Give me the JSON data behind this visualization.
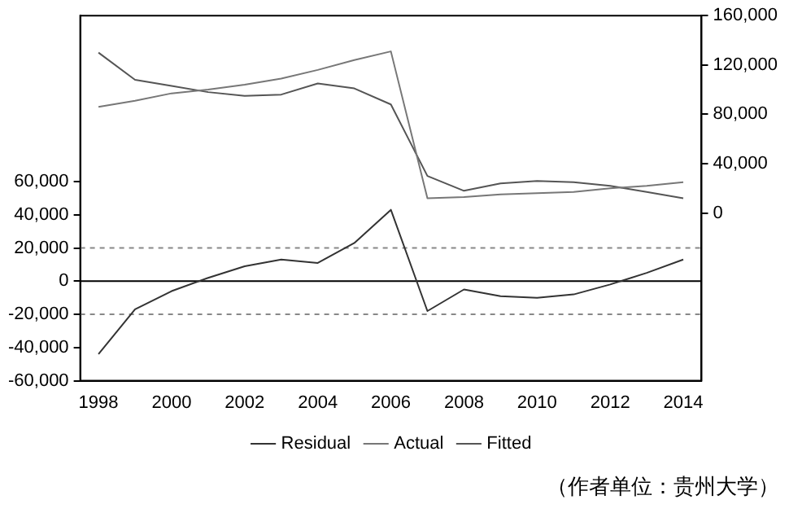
{
  "chart_data": {
    "type": "line",
    "categories": [
      "1998",
      null,
      "2000",
      null,
      "2002",
      null,
      "2004",
      null,
      "2006",
      null,
      "2008",
      null,
      "2010",
      null,
      "2012",
      null,
      "2014"
    ],
    "series": [
      {
        "name": "Residual",
        "color": "#333333",
        "axis": "y",
        "values": [
          -44000,
          -17000,
          -6000,
          2000,
          9000,
          13000,
          11000,
          23000,
          43000,
          -18000,
          -5000,
          -9000,
          -10000,
          -8000,
          -2000,
          5000,
          13000
        ]
      },
      {
        "name": "Actual",
        "color": "#777777",
        "axis": "y2",
        "values": [
          86000,
          91000,
          97000,
          100000,
          104000,
          109000,
          116000,
          124000,
          131000,
          12000,
          13000,
          15000,
          16000,
          17000,
          20000,
          22000,
          25000
        ]
      },
      {
        "name": "Fitted",
        "color": "#555555",
        "axis": "y2",
        "values": [
          130000,
          108000,
          103000,
          98000,
          95000,
          96000,
          105000,
          101000,
          88000,
          30000,
          18000,
          24000,
          26000,
          25000,
          22000,
          17000,
          12000
        ]
      }
    ],
    "ylim": [
      -60000,
      160000
    ],
    "yticks": [
      {
        "value": -60000,
        "label": "-60,000"
      },
      {
        "value": -40000,
        "label": "-40,000"
      },
      {
        "value": -20000,
        "label": "-20,000"
      },
      0,
      {
        "value": 20000,
        "label": "20,000"
      },
      {
        "value": 40000,
        "label": "40,000"
      },
      {
        "value": 60000,
        "label": "60,000"
      }
    ],
    "y2lim": [
      -136000,
      160000
    ],
    "y2ticks": [
      0,
      {
        "value": 40000,
        "label": "40,000"
      },
      {
        "value": 80000,
        "label": "80,000"
      },
      {
        "value": 120000,
        "label": "120,000"
      },
      {
        "value": 160000,
        "label": "160,000"
      }
    ],
    "ref_lines": [
      {
        "axis": "y",
        "value": 20000,
        "color": "#888888",
        "line_style": "dashed"
      },
      {
        "axis": "y",
        "value": 0,
        "color": "#000000",
        "line_style": "solid"
      },
      {
        "axis": "y",
        "value": -20000,
        "color": "#888888",
        "line_style": "dashed"
      }
    ],
    "grid": false,
    "legend": "bottom",
    "marker": "none",
    "line_style": "solid",
    "annotations": [
      "（作者单位：贵州大学）"
    ]
  }
}
